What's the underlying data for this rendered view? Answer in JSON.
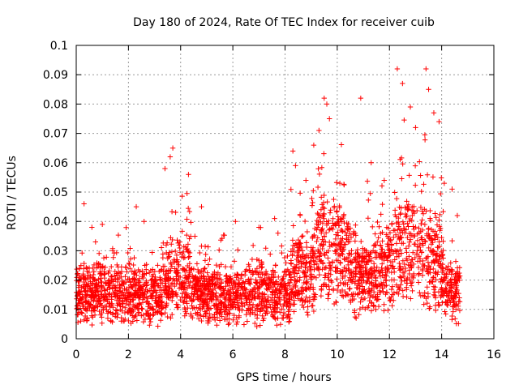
{
  "chart_data": {
    "type": "scatter",
    "title": "Day 180 of 2024, Rate Of TEC Index for receiver cuib",
    "xlabel": "GPS time / hours",
    "ylabel": "ROTI / TECUs",
    "xlim": [
      0,
      16
    ],
    "ylim": [
      0,
      0.1
    ],
    "xticks": [
      0,
      2,
      4,
      6,
      8,
      10,
      12,
      14,
      16
    ],
    "xtick_labels": [
      "0",
      "2",
      "4",
      "6",
      "8",
      "10",
      "12",
      "14",
      "16"
    ],
    "yticks": [
      0,
      0.01,
      0.02,
      0.03,
      0.04,
      0.05,
      0.06,
      0.07,
      0.08,
      0.09,
      0.1
    ],
    "ytick_labels": [
      "0",
      "0.01",
      "0.02",
      "0.03",
      "0.04",
      "0.05",
      "0.06",
      "0.07",
      "0.08",
      "0.09",
      "0.1"
    ],
    "grid": true,
    "marker": "+",
    "marker_color": "#ff0000",
    "series": [
      {
        "name": "ROTI",
        "x_range": [
          0,
          14.7
        ],
        "note_profile": "dense cloud of points; baseline band ~0.005-0.03 TECU/min across 0-14.7 h, enhanced activity near 3.5-4.2 h and 8.2-14 h",
        "x": [
          0.3,
          0.6,
          1.0,
          1.4,
          2.3,
          2.6,
          3.4,
          3.6,
          3.7,
          4.3,
          4.8,
          6.1,
          7.0,
          7.6,
          8.3,
          8.4,
          8.8,
          9.1,
          9.3,
          9.5,
          9.6,
          9.7,
          10.1,
          10.9,
          11.3,
          11.8,
          12.3,
          12.5,
          12.8,
          13.0,
          13.4,
          13.5,
          13.7,
          13.9,
          14.1,
          14.4,
          14.6
        ],
        "y": [
          0.046,
          0.038,
          0.039,
          0.03,
          0.045,
          0.04,
          0.058,
          0.062,
          0.065,
          0.056,
          0.045,
          0.04,
          0.038,
          0.041,
          0.064,
          0.059,
          0.054,
          0.066,
          0.071,
          0.082,
          0.08,
          0.075,
          0.053,
          0.082,
          0.06,
          0.054,
          0.092,
          0.087,
          0.079,
          0.072,
          0.092,
          0.085,
          0.077,
          0.074,
          0.053,
          0.051,
          0.042
        ]
      }
    ]
  }
}
